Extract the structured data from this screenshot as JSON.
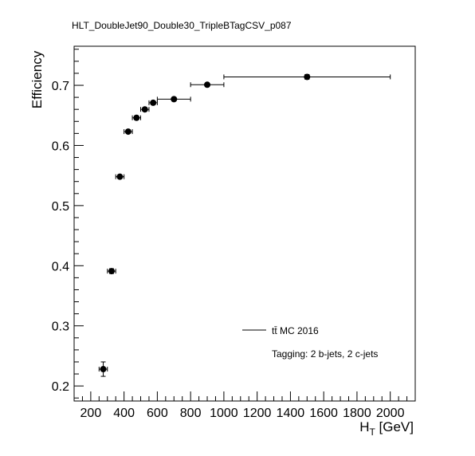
{
  "chart_data": {
    "type": "scatter",
    "title": "HLT_DoubleJet90_Double30_TripleBTagCSV_p087",
    "xlabel_main": "H",
    "xlabel_sub": "T",
    "xlabel_unit": " [GeV]",
    "ylabel": "Efficiency",
    "xlim": [
      100,
      2150
    ],
    "ylim": [
      0.175,
      0.765
    ],
    "xticks": [
      200,
      400,
      600,
      800,
      1000,
      1200,
      1400,
      1600,
      1800,
      2000
    ],
    "xtick_labels": [
      "200",
      "400",
      "600",
      "800",
      "1000",
      "1200",
      "1400",
      "1600",
      "1800",
      "2000"
    ],
    "yticks": [
      0.2,
      0.3,
      0.4,
      0.5,
      0.6,
      0.7
    ],
    "ytick_labels": [
      "0.2",
      "0.3",
      "0.4",
      "0.5",
      "0.6",
      "0.7"
    ],
    "legend": "tt̄ MC 2016",
    "annotation": "Tagging: 2 b-jets, 2 c-jets",
    "series": [
      {
        "name": "tt̄ MC 2016",
        "points": [
          {
            "x": 275,
            "y": 0.228,
            "xlo": 250,
            "xhi": 300,
            "yerr": 0.012
          },
          {
            "x": 325,
            "y": 0.391,
            "xlo": 300,
            "xhi": 350,
            "yerr": 0.004
          },
          {
            "x": 375,
            "y": 0.548,
            "xlo": 350,
            "xhi": 400,
            "yerr": 0.003
          },
          {
            "x": 425,
            "y": 0.623,
            "xlo": 400,
            "xhi": 450,
            "yerr": 0.003
          },
          {
            "x": 475,
            "y": 0.646,
            "xlo": 450,
            "xhi": 500,
            "yerr": 0.003
          },
          {
            "x": 525,
            "y": 0.66,
            "xlo": 500,
            "xhi": 550,
            "yerr": 0.003
          },
          {
            "x": 575,
            "y": 0.671,
            "xlo": 550,
            "xhi": 600,
            "yerr": 0.003
          },
          {
            "x": 700,
            "y": 0.677,
            "xlo": 600,
            "xhi": 800,
            "yerr": 0.003
          },
          {
            "x": 900,
            "y": 0.701,
            "xlo": 800,
            "xhi": 1000,
            "yerr": 0.003
          },
          {
            "x": 1500,
            "y": 0.714,
            "xlo": 1000,
            "xhi": 2000,
            "yerr": 0.004
          }
        ]
      }
    ]
  }
}
